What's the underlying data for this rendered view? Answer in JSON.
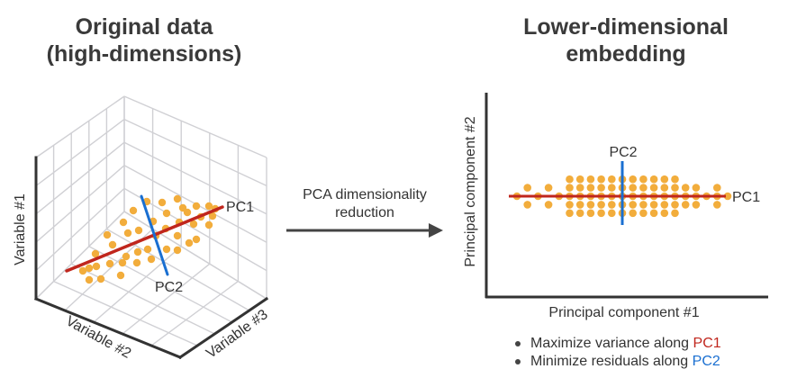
{
  "left_panel": {
    "title_line1": "Original data",
    "title_line2": "(high-dimensions)",
    "axes": {
      "vertical": "Variable #1",
      "left_depth": "Variable #2",
      "right_depth": "Variable #3"
    },
    "pc1_label": "PC1",
    "pc2_label": "PC2"
  },
  "arrow": {
    "label_line1": "PCA dimensionality",
    "label_line2": "reduction",
    "icon": "right-arrow-icon"
  },
  "right_panel": {
    "title_line1": "Lower-dimensional",
    "title_line2": "embedding",
    "xlabel": "Principal component #1",
    "ylabel": "Principal component #2",
    "pc1_label": "PC1",
    "pc2_label": "PC2",
    "bullets": [
      {
        "text": "Maximize variance along ",
        "highlight": "PC1"
      },
      {
        "text": "Minimize residuals along ",
        "highlight": "PC2"
      }
    ]
  },
  "colors": {
    "points": "#f2ad3c",
    "pc1": "#c0261d",
    "pc2": "#1a6fd1",
    "axis": "#333333",
    "grid": "#d0d0d4"
  },
  "chart_data": [
    {
      "type": "scatter",
      "title": "Original data (high-dimensions)",
      "axes3d": [
        "Variable #1",
        "Variable #2",
        "Variable #3"
      ],
      "description": "3D scatter cloud elongated along PC1 with PC2 perpendicular",
      "point_count": 40,
      "lines": [
        "PC1",
        "PC2"
      ]
    },
    {
      "type": "scatter",
      "title": "Lower-dimensional embedding",
      "xlabel": "Principal component #1",
      "ylabel": "Principal component #2",
      "columns_x": [
        -10,
        -9,
        -8,
        -7,
        -6,
        -5,
        -4,
        -3,
        -2,
        -1,
        0,
        1,
        2,
        3,
        4,
        5,
        6,
        7,
        8,
        9,
        10
      ],
      "column_y_values": [
        [
          0
        ],
        [
          1,
          -1
        ],
        [
          0
        ],
        [
          1,
          -1
        ],
        [
          0
        ],
        [
          2,
          1,
          0,
          -1,
          -2
        ],
        [
          2,
          1,
          0,
          -1,
          -2
        ],
        [
          2,
          1,
          0,
          -1,
          -2
        ],
        [
          2,
          1,
          0,
          -1,
          -2
        ],
        [
          2,
          1,
          0,
          -1,
          -2
        ],
        [
          2,
          1,
          0,
          -1,
          -2
        ],
        [
          2,
          1,
          0,
          -1,
          -2
        ],
        [
          2,
          1,
          0,
          -1,
          -2
        ],
        [
          2,
          1,
          0,
          -1,
          -2
        ],
        [
          2,
          1,
          0,
          -1,
          -2
        ],
        [
          2,
          1,
          0,
          -1,
          -2
        ],
        [
          1,
          0,
          -1
        ],
        [
          1,
          0,
          -1
        ],
        [
          0
        ],
        [
          1,
          0,
          -1
        ],
        [
          0
        ]
      ],
      "lines": [
        {
          "name": "PC1",
          "orientation": "horizontal",
          "y": 0
        },
        {
          "name": "PC2",
          "orientation": "vertical",
          "x": 0
        }
      ]
    }
  ]
}
